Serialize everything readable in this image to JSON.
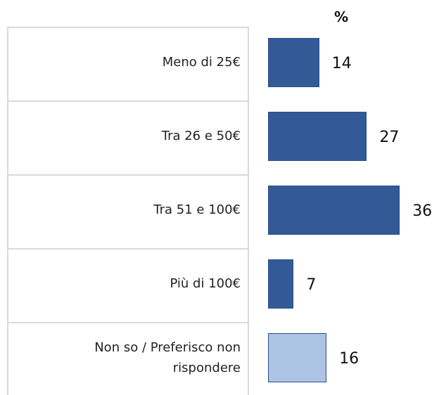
{
  "chart_data": {
    "type": "bar",
    "unit_label": "%",
    "categories": [
      "Meno di 25€",
      "Tra 26 e 50€",
      "Tra 51 e 100€",
      "Più di 100€",
      "Non so / Preferisco non rispondere"
    ],
    "values": [
      14,
      27,
      36,
      7,
      16
    ],
    "colors": [
      "#335a96",
      "#335a96",
      "#335a96",
      "#335a96",
      "#adc3e3"
    ]
  }
}
